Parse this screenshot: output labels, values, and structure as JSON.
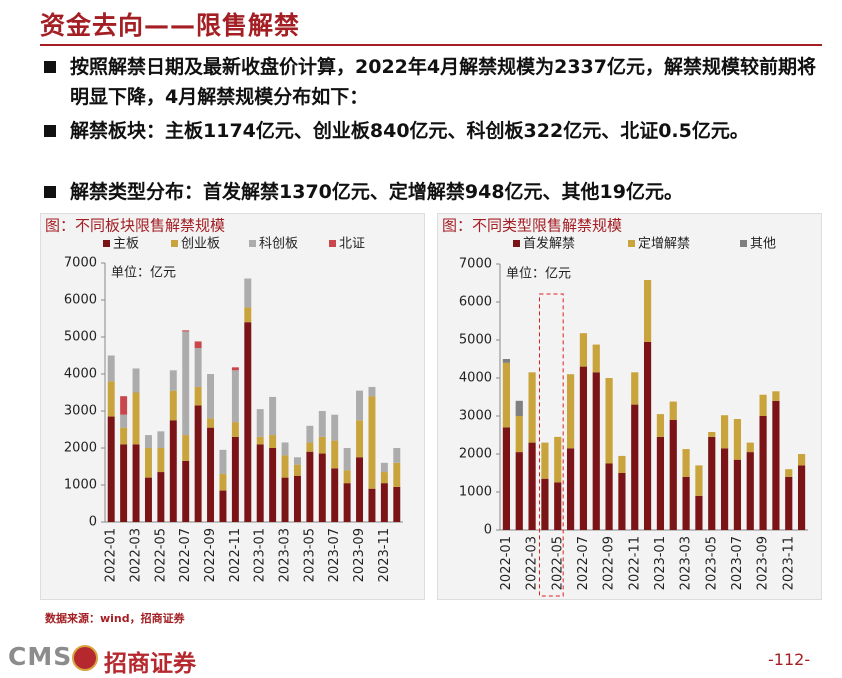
{
  "title": "资金去向——限售解禁",
  "bullets": [
    "按照解禁日期及最新收盘价计算，2022年4月解禁规模为2337亿元，解禁规模较前期将明显下降，4月解禁规模分布如下：",
    "解禁板块：主板1174亿元、创业板840亿元、科创板322亿元、北证0.5亿元。",
    "解禁类型分布：首发解禁1370亿元、定增解禁948亿元、其他19亿元。"
  ],
  "chart_data": [
    {
      "type": "bar",
      "stacked": true,
      "title": "图：不同板块限售解禁规模",
      "annotation": "单位：亿元",
      "categories": [
        "2022-01",
        null,
        "2022-03",
        null,
        "2022-05",
        null,
        "2022-07",
        null,
        "2022-09",
        null,
        "2022-11",
        null,
        "2023-01",
        null,
        "2023-03",
        null,
        "2023-05",
        null,
        "2023-07",
        null,
        "2023-09",
        null,
        "2023-11",
        null
      ],
      "series": [
        {
          "name": "主板",
          "color": "#7b1416",
          "values": [
            2850,
            2100,
            2100,
            1200,
            1350,
            2750,
            1650,
            3150,
            2550,
            850,
            2300,
            5400,
            2100,
            2000,
            1200,
            1250,
            1900,
            1850,
            1450,
            1050,
            1750,
            900,
            1050,
            950
          ]
        },
        {
          "name": "创业板",
          "color": "#c9a43c",
          "values": [
            950,
            450,
            1400,
            800,
            650,
            800,
            700,
            500,
            250,
            450,
            400,
            400,
            200,
            350,
            600,
            300,
            250,
            450,
            750,
            350,
            1000,
            2500,
            300,
            650
          ]
        },
        {
          "name": "科创板",
          "color": "#acacac",
          "values": [
            700,
            350,
            650,
            350,
            450,
            550,
            2800,
            1050,
            1200,
            650,
            1400,
            780,
            750,
            1030,
            350,
            200,
            450,
            700,
            700,
            600,
            800,
            250,
            250,
            400
          ]
        },
        {
          "name": "北证",
          "color": "#c9474c",
          "values": [
            0,
            500,
            0,
            0,
            0,
            0,
            30,
            180,
            0,
            0,
            80,
            0,
            0,
            0,
            0,
            0,
            0,
            0,
            0,
            0,
            0,
            0,
            0,
            0
          ]
        }
      ],
      "ylim": [
        0,
        7000
      ],
      "yticks": [
        0,
        1000,
        2000,
        3000,
        4000,
        5000,
        6000,
        7000
      ],
      "grid": false
    },
    {
      "type": "bar",
      "stacked": true,
      "title": "图：不同类型限售解禁规模",
      "annotation": "单位：亿元",
      "categories": [
        "2022-01",
        null,
        "2022-03",
        null,
        "2022-05",
        null,
        "2022-07",
        null,
        "2022-09",
        null,
        "2022-11",
        null,
        "2023-01",
        null,
        "2023-03",
        null,
        "2023-05",
        null,
        "2023-07",
        null,
        "2023-09",
        null,
        "2023-11",
        null
      ],
      "series": [
        {
          "name": "首发解禁",
          "color": "#7b1416",
          "values": [
            2700,
            2050,
            2300,
            1350,
            1250,
            2150,
            4300,
            4150,
            1750,
            1500,
            3300,
            4950,
            2450,
            2900,
            1400,
            900,
            2450,
            2150,
            1850,
            2050,
            3000,
            3400,
            1400,
            1700
          ]
        },
        {
          "name": "定增解禁",
          "color": "#c9a43c",
          "values": [
            1700,
            950,
            1850,
            950,
            1200,
            1950,
            880,
            730,
            2250,
            450,
            850,
            1630,
            600,
            480,
            730,
            800,
            130,
            870,
            1070,
            250,
            560,
            250,
            200,
            300
          ]
        },
        {
          "name": "其他",
          "color": "#7f7f7f",
          "values": [
            100,
            400,
            0,
            0,
            0,
            0,
            0,
            0,
            0,
            0,
            0,
            0,
            0,
            0,
            0,
            0,
            0,
            0,
            0,
            0,
            0,
            0,
            0,
            0
          ]
        }
      ],
      "ylim": [
        0,
        7000
      ],
      "yticks": [
        0,
        1000,
        2000,
        3000,
        4000,
        5000,
        6000,
        7000
      ],
      "grid": false
    }
  ],
  "source": "数据来源：wind，招商证券",
  "footer": {
    "logo": "CMS",
    "company": "招商证券",
    "page": "-112-"
  }
}
